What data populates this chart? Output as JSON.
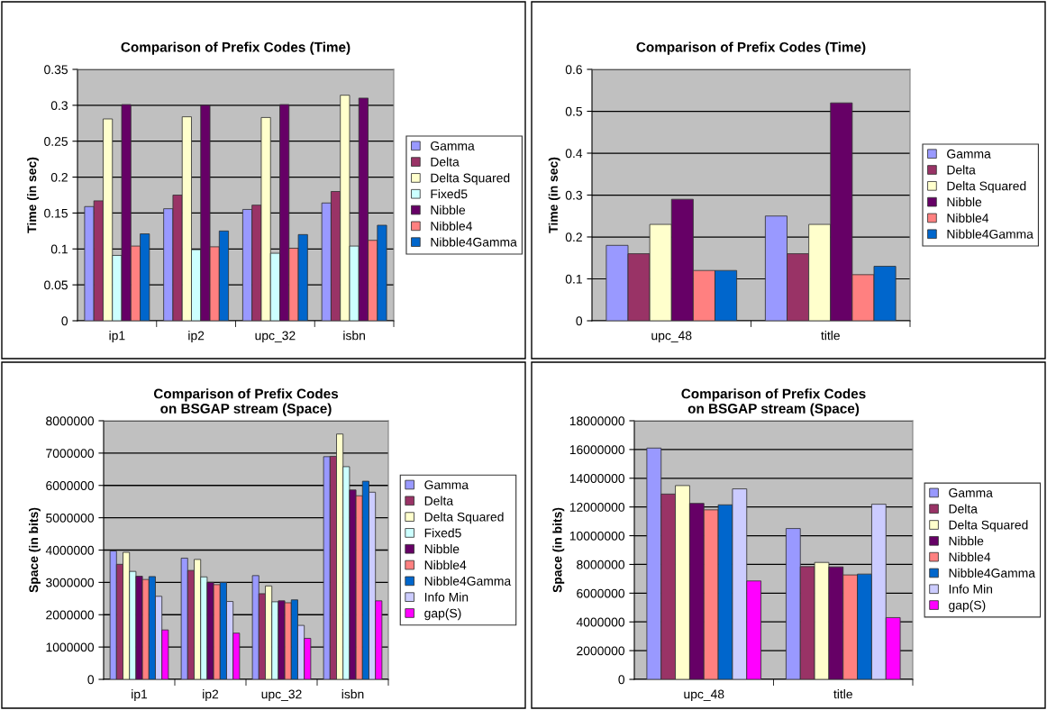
{
  "chart_data": [
    {
      "type": "bar",
      "title": "Comparison of Prefix Codes (Time)",
      "ylabel": "Time (in sec)",
      "categories": [
        "ip1",
        "ip2",
        "upc_32",
        "isbn"
      ],
      "ylim": [
        0,
        0.35
      ],
      "yticks": [
        0,
        0.05,
        0.1,
        0.15,
        0.2,
        0.25,
        0.3,
        0.35
      ],
      "grid": "y",
      "legend": "right",
      "series": [
        {
          "name": "Gamma",
          "color": "#9999ff",
          "values": [
            0.159,
            0.156,
            0.155,
            0.164
          ]
        },
        {
          "name": "Delta",
          "color": "#993366",
          "values": [
            0.167,
            0.175,
            0.161,
            0.18
          ]
        },
        {
          "name": "Delta Squared",
          "color": "#ffffcc",
          "values": [
            0.281,
            0.284,
            0.283,
            0.314
          ]
        },
        {
          "name": "Fixed5",
          "color": "#ccffff",
          "values": [
            0.091,
            0.099,
            0.094,
            0.104
          ]
        },
        {
          "name": "Nibble",
          "color": "#660066",
          "values": [
            0.301,
            0.3,
            0.301,
            0.31
          ]
        },
        {
          "name": "Nibble4",
          "color": "#ff8080",
          "values": [
            0.104,
            0.103,
            0.101,
            0.112
          ]
        },
        {
          "name": "Nibble4Gamma",
          "color": "#0066cc",
          "values": [
            0.121,
            0.125,
            0.12,
            0.133
          ]
        }
      ]
    },
    {
      "type": "bar",
      "title": "Comparison of Prefix Codes (Time)",
      "ylabel": "Time (in sec)",
      "categories": [
        "upc_48",
        "title"
      ],
      "ylim": [
        0,
        0.6
      ],
      "yticks": [
        0,
        0.1,
        0.2,
        0.3,
        0.4,
        0.5,
        0.6
      ],
      "grid": "y",
      "legend": "right",
      "series": [
        {
          "name": "Gamma",
          "color": "#9999ff",
          "values": [
            0.18,
            0.25
          ]
        },
        {
          "name": "Delta",
          "color": "#993366",
          "values": [
            0.16,
            0.16
          ]
        },
        {
          "name": "Delta Squared",
          "color": "#ffffcc",
          "values": [
            0.23,
            0.23
          ]
        },
        {
          "name": "Nibble",
          "color": "#660066",
          "values": [
            0.29,
            0.52
          ]
        },
        {
          "name": "Nibble4",
          "color": "#ff8080",
          "values": [
            0.12,
            0.11
          ]
        },
        {
          "name": "Nibble4Gamma",
          "color": "#0066cc",
          "values": [
            0.12,
            0.13
          ]
        }
      ]
    },
    {
      "type": "bar",
      "title": "Comparison of Prefix Codes\non BSGAP stream (Space)",
      "ylabel": "Space (in bits)",
      "categories": [
        "ip1",
        "ip2",
        "upc_32",
        "isbn"
      ],
      "ylim": [
        0,
        8000000
      ],
      "yticks": [
        0,
        1000000,
        2000000,
        3000000,
        4000000,
        5000000,
        6000000,
        7000000,
        8000000
      ],
      "grid": "y",
      "legend": "right",
      "series": [
        {
          "name": "Gamma",
          "color": "#9999ff",
          "values": [
            3970000,
            3750000,
            3210000,
            6890000
          ]
        },
        {
          "name": "Delta",
          "color": "#993366",
          "values": [
            3560000,
            3370000,
            2650000,
            6900000
          ]
        },
        {
          "name": "Delta Squared",
          "color": "#ffffcc",
          "values": [
            3930000,
            3710000,
            2890000,
            7590000
          ]
        },
        {
          "name": "Fixed5",
          "color": "#ccffff",
          "values": [
            3340000,
            3170000,
            2400000,
            6580000
          ]
        },
        {
          "name": "Nibble",
          "color": "#660066",
          "values": [
            3190000,
            3000000,
            2430000,
            5860000
          ]
        },
        {
          "name": "Nibble4",
          "color": "#ff8080",
          "values": [
            3090000,
            2930000,
            2370000,
            5680000
          ]
        },
        {
          "name": "Nibble4Gamma",
          "color": "#0066cc",
          "values": [
            3180000,
            3000000,
            2460000,
            6130000
          ]
        },
        {
          "name": "Info Min",
          "color": "#ccccff",
          "values": [
            2570000,
            2410000,
            1670000,
            5790000
          ]
        },
        {
          "name": "gap(S)",
          "color": "#ff00ff",
          "values": [
            1530000,
            1430000,
            1270000,
            2430000
          ]
        }
      ]
    },
    {
      "type": "bar",
      "title": "Comparison of Prefix Codes\non BSGAP stream (Space)",
      "ylabel": "Space (in bits)",
      "categories": [
        "upc_48",
        "title"
      ],
      "ylim": [
        0,
        18000000
      ],
      "yticks": [
        0,
        2000000,
        4000000,
        6000000,
        8000000,
        10000000,
        12000000,
        14000000,
        16000000,
        18000000
      ],
      "grid": "y",
      "legend": "right",
      "series": [
        {
          "name": "Gamma",
          "color": "#9999ff",
          "values": [
            16100000,
            10500000
          ]
        },
        {
          "name": "Delta",
          "color": "#993366",
          "values": [
            12900000,
            7850000
          ]
        },
        {
          "name": "Delta Squared",
          "color": "#ffffcc",
          "values": [
            13490000,
            8140000
          ]
        },
        {
          "name": "Nibble",
          "color": "#660066",
          "values": [
            12250000,
            7830000
          ]
        },
        {
          "name": "Nibble4",
          "color": "#ff8080",
          "values": [
            11800000,
            7270000
          ]
        },
        {
          "name": "Nibble4Gamma",
          "color": "#0066cc",
          "values": [
            12150000,
            7330000
          ]
        },
        {
          "name": "Info Min",
          "color": "#ccccff",
          "values": [
            13260000,
            12190000
          ]
        },
        {
          "name": "gap(S)",
          "color": "#ff00ff",
          "values": [
            6850000,
            4300000
          ]
        }
      ]
    }
  ]
}
